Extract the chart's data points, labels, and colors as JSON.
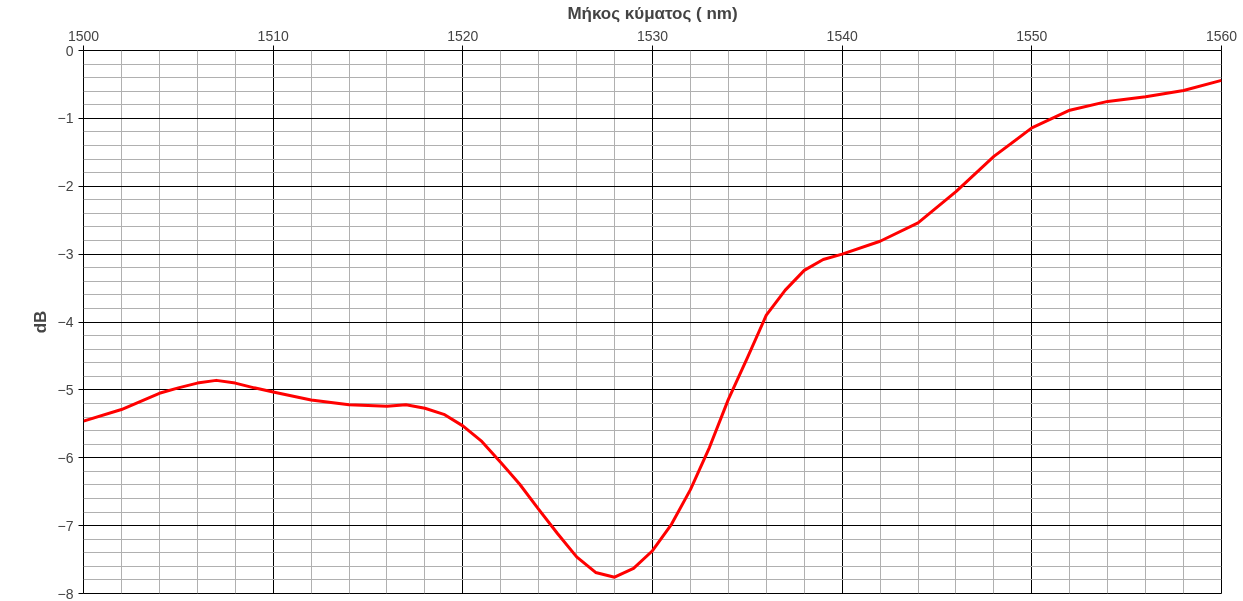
{
  "chart_data": {
    "type": "line",
    "xlabel": "Μήκος κύματος ( nm)",
    "ylabel": "dB",
    "xlim": [
      1500,
      1560
    ],
    "ylim": [
      -8,
      0
    ],
    "xticks": [
      1500,
      1510,
      1520,
      1530,
      1540,
      1550,
      1560
    ],
    "yticks": [
      0,
      -1,
      -2,
      -3,
      -4,
      -5,
      -6,
      -7,
      -8
    ],
    "grid": true,
    "marker": "none",
    "line_style": "solid",
    "x": [
      1500,
      1502,
      1504,
      1505,
      1506,
      1507,
      1508,
      1509,
      1510,
      1512,
      1514,
      1516,
      1517,
      1518,
      1519,
      1520,
      1521,
      1522,
      1523,
      1524,
      1525,
      1526,
      1527,
      1528,
      1529,
      1530,
      1531,
      1532,
      1533,
      1534,
      1535,
      1536,
      1537,
      1538,
      1539,
      1540,
      1542,
      1544,
      1546,
      1548,
      1550,
      1552,
      1554,
      1556,
      1558,
      1560
    ],
    "series": [
      {
        "color": "#ff0000",
        "values": [
          -5.46,
          -5.29,
          -5.05,
          -4.97,
          -4.9,
          -4.86,
          -4.9,
          -4.97,
          -5.03,
          -5.15,
          -5.22,
          -5.24,
          -5.22,
          -5.27,
          -5.36,
          -5.53,
          -5.76,
          -6.07,
          -6.39,
          -6.76,
          -7.12,
          -7.46,
          -7.69,
          -7.76,
          -7.63,
          -7.37,
          -6.98,
          -6.47,
          -5.85,
          -5.14,
          -4.53,
          -3.9,
          -3.53,
          -3.24,
          -3.08,
          -3.0,
          -2.81,
          -2.54,
          -2.08,
          -1.56,
          -1.14,
          -0.88,
          -0.75,
          -0.68,
          -0.59,
          -0.44
        ]
      }
    ]
  }
}
